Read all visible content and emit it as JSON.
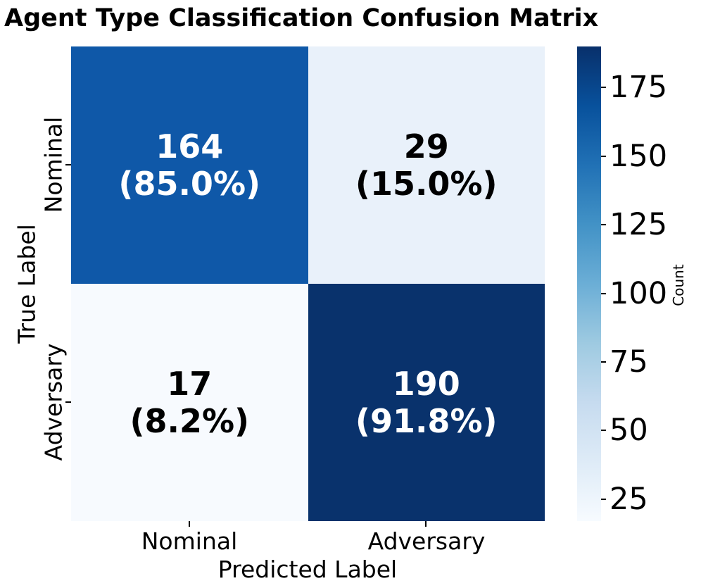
{
  "title": "Agent Type Classification Confusion Matrix",
  "chart_data": {
    "type": "heatmap",
    "title": "Agent Type Classification Confusion Matrix",
    "xlabel": "Predicted Label",
    "ylabel": "True Label",
    "x_categories": [
      "Nominal",
      "Adversary"
    ],
    "y_categories": [
      "Nominal",
      "Adversary"
    ],
    "grid": false,
    "cells": [
      {
        "true_label": "Nominal",
        "predicted_label": "Nominal",
        "count": "164",
        "pct_label": "(85.0%)",
        "bg": "#0F58A8",
        "fg": "#FFFFFF"
      },
      {
        "true_label": "Nominal",
        "predicted_label": "Adversary",
        "count": "29",
        "pct_label": "(15.0%)",
        "bg": "#E9F1FA",
        "fg": "#000000"
      },
      {
        "true_label": "Adversary",
        "predicted_label": "Nominal",
        "count": "17",
        "pct_label": "(8.2%)",
        "bg": "#F7FAFE",
        "fg": "#000000"
      },
      {
        "true_label": "Adversary",
        "predicted_label": "Adversary",
        "count": "190",
        "pct_label": "(91.8%)",
        "bg": "#09326C",
        "fg": "#FFFFFF"
      }
    ],
    "colorbar": {
      "label": "Count",
      "vmin": 17,
      "vmax": 190,
      "ticks": [
        "25",
        "50",
        "75",
        "100",
        "125",
        "150",
        "175"
      ],
      "tick_values": [
        25,
        50,
        75,
        100,
        125,
        150,
        175
      ],
      "colormap": "Blues",
      "gradient_stops": [
        {
          "pos": 0,
          "color": "#F7FBFF"
        },
        {
          "pos": 12.5,
          "color": "#DEEBF7"
        },
        {
          "pos": 25,
          "color": "#C6DBEF"
        },
        {
          "pos": 37.5,
          "color": "#9ECAE1"
        },
        {
          "pos": 50,
          "color": "#6BAED6"
        },
        {
          "pos": 62.5,
          "color": "#4292C6"
        },
        {
          "pos": 75,
          "color": "#2171B5"
        },
        {
          "pos": 87.5,
          "color": "#08519C"
        },
        {
          "pos": 100,
          "color": "#08306B"
        }
      ]
    }
  }
}
